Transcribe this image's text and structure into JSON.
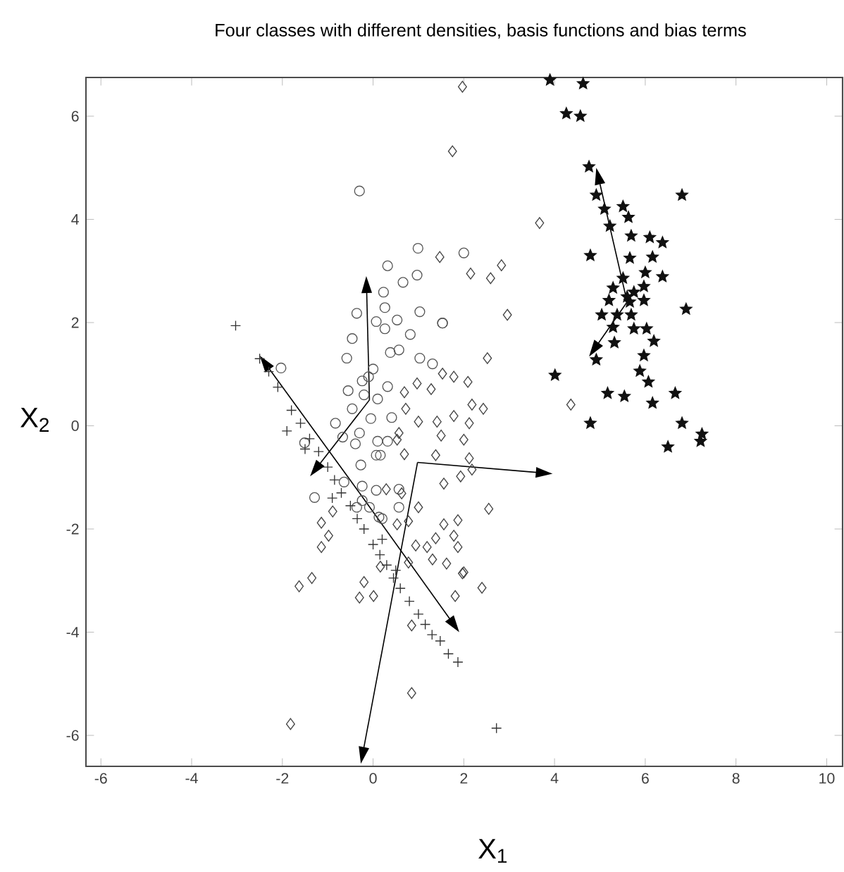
{
  "chart_data": {
    "type": "scatter",
    "title": "Four classes with different densities, basis functions and bias terms",
    "xlabel": "X$_{1}$",
    "ylabel": "X$_{2}$",
    "xlim": [
      -6.33,
      10.35
    ],
    "ylim": [
      -6.6,
      6.75
    ],
    "xticks": [
      -6,
      -4,
      -2,
      0,
      2,
      4,
      6,
      8,
      10
    ],
    "yticks": [
      -6,
      -4,
      -2,
      0,
      2,
      4,
      6
    ],
    "series": [
      {
        "marker": "circle",
        "color": "#555555",
        "x": [
          0.99,
          2.0,
          0.32,
          0.66,
          0.97,
          1.03,
          1.53,
          -0.36,
          0.07,
          0.53,
          0.82,
          -0.46,
          -0.58,
          0.38,
          0.57,
          1.03,
          -2.03,
          1.31,
          0.26,
          0.23,
          0.26,
          -0.55,
          -0.24,
          0.32,
          0.1,
          -0.46,
          -0.05,
          0.41,
          -0.83,
          -0.67,
          -0.3,
          0.1,
          -1.51,
          -0.39,
          -0.3,
          1.53,
          -0.27,
          -1.29,
          -0.24,
          0.07,
          0.07,
          -0.64,
          -0.24,
          0.13,
          -0.08,
          0.32,
          0.16,
          -0.36,
          0.2,
          0.57,
          0.57,
          -0.1,
          0.0,
          -0.2
        ],
        "values": [
          3.44,
          3.35,
          3.1,
          2.78,
          2.92,
          2.21,
          1.99,
          2.18,
          2.02,
          2.05,
          1.77,
          1.69,
          1.31,
          1.42,
          1.47,
          1.31,
          1.12,
          1.2,
          1.88,
          2.59,
          2.29,
          0.68,
          0.87,
          0.76,
          0.52,
          0.33,
          0.14,
          0.16,
          0.05,
          -0.22,
          -0.14,
          -0.3,
          -0.33,
          -0.35,
          4.55,
          1.99,
          -0.76,
          -1.39,
          -1.17,
          -1.25,
          -0.57,
          -1.09,
          -1.45,
          -1.77,
          -1.58,
          -0.3,
          -0.57,
          -1.58,
          -1.8,
          -1.23,
          -1.58,
          0.95,
          1.1,
          0.6
        ]
      },
      {
        "marker": "diamond",
        "color": "#444444",
        "x": [
          1.47,
          2.15,
          2.52,
          1.53,
          1.78,
          2.09,
          1.28,
          0.97,
          0.69,
          0.72,
          1.0,
          1.41,
          1.78,
          2.12,
          2.43,
          1.5,
          2.0,
          2.18,
          0.57,
          1.97,
          1.75,
          3.67,
          2.59,
          2.83,
          2.96,
          4.36,
          0.53,
          2.12,
          1.38,
          0.69,
          1.56,
          1.93,
          2.18,
          0.29,
          0.63,
          1.0,
          2.55,
          -0.89,
          -1.14,
          -0.98,
          -1.14,
          0.53,
          0.78,
          1.56,
          1.87,
          1.38,
          1.19,
          0.94,
          1.78,
          1.87,
          1.31,
          1.62,
          2.0,
          0.78,
          0.16,
          2.4,
          1.81,
          -1.35,
          -1.63,
          -0.2,
          -0.3,
          0.01,
          0.85,
          0.85,
          1.97,
          -1.82
        ],
        "values": [
          3.27,
          2.95,
          1.31,
          1.01,
          0.95,
          0.85,
          0.71,
          0.82,
          0.65,
          0.33,
          0.08,
          0.08,
          0.19,
          0.05,
          0.33,
          -0.19,
          -0.27,
          0.41,
          -0.14,
          6.57,
          5.32,
          3.93,
          2.86,
          3.11,
          2.15,
          0.41,
          -0.27,
          -0.63,
          -0.57,
          -0.55,
          -1.12,
          -0.98,
          -0.85,
          -1.23,
          -1.31,
          -1.58,
          -1.61,
          -1.66,
          -1.88,
          -2.13,
          -2.35,
          -1.91,
          -1.85,
          -1.91,
          -1.83,
          -2.18,
          -2.35,
          -2.32,
          -2.13,
          -2.35,
          -2.59,
          -2.67,
          -2.84,
          -2.65,
          -2.73,
          -3.14,
          -3.3,
          -2.95,
          -3.11,
          -3.03,
          -3.33,
          -3.3,
          -3.87,
          -5.18,
          -2.86,
          -5.78
        ]
      },
      {
        "marker": "cross",
        "color": "#333333",
        "x": [
          -3.03,
          -2.5,
          -2.3,
          -2.1,
          -1.8,
          -1.6,
          -1.4,
          -1.2,
          -1.0,
          -0.85,
          -0.7,
          -0.5,
          -0.35,
          -0.2,
          0.0,
          0.15,
          0.3,
          0.45,
          0.6,
          0.8,
          1.0,
          1.15,
          1.3,
          1.48,
          1.66,
          1.87,
          2.72,
          -1.9,
          -0.9,
          0.2,
          -1.5,
          0.5
        ],
        "values": [
          1.94,
          1.3,
          1.05,
          0.75,
          0.3,
          0.05,
          -0.25,
          -0.5,
          -0.8,
          -1.05,
          -1.3,
          -1.55,
          -1.8,
          -2.0,
          -2.3,
          -2.5,
          -2.7,
          -2.95,
          -3.15,
          -3.4,
          -3.65,
          -3.85,
          -4.05,
          -4.17,
          -4.42,
          -4.58,
          -5.86,
          -0.1,
          -1.4,
          -2.2,
          -0.45,
          -2.8
        ]
      },
      {
        "marker": "star",
        "color": "#111111",
        "x": [
          3.9,
          4.63,
          4.26,
          4.57,
          4.76,
          6.81,
          4.92,
          5.51,
          5.63,
          5.1,
          5.22,
          5.69,
          6.1,
          6.38,
          4.79,
          5.66,
          6.16,
          6.38,
          6.0,
          5.51,
          5.29,
          5.75,
          5.97,
          5.2,
          5.66,
          5.97,
          6.9,
          5.04,
          5.38,
          5.69,
          6.03,
          5.75,
          5.29,
          5.32,
          6.19,
          4.92,
          5.97,
          5.88,
          6.07,
          4.01,
          5.17,
          5.54,
          6.66,
          6.16,
          4.79,
          6.81,
          7.25,
          7.22,
          6.5,
          5.6
        ],
        "values": [
          6.7,
          6.63,
          6.05,
          6.0,
          5.02,
          4.47,
          4.47,
          4.25,
          4.04,
          4.2,
          3.87,
          3.68,
          3.65,
          3.55,
          3.3,
          3.25,
          3.27,
          2.89,
          2.97,
          2.86,
          2.67,
          2.59,
          2.7,
          2.43,
          2.4,
          2.43,
          2.26,
          2.15,
          2.15,
          2.15,
          1.88,
          1.88,
          1.91,
          1.61,
          1.64,
          1.28,
          1.36,
          1.06,
          0.85,
          0.98,
          0.63,
          0.57,
          0.63,
          0.44,
          0.05,
          0.05,
          -0.16,
          -0.3,
          -0.41,
          2.5
        ]
      }
    ]
  }
}
